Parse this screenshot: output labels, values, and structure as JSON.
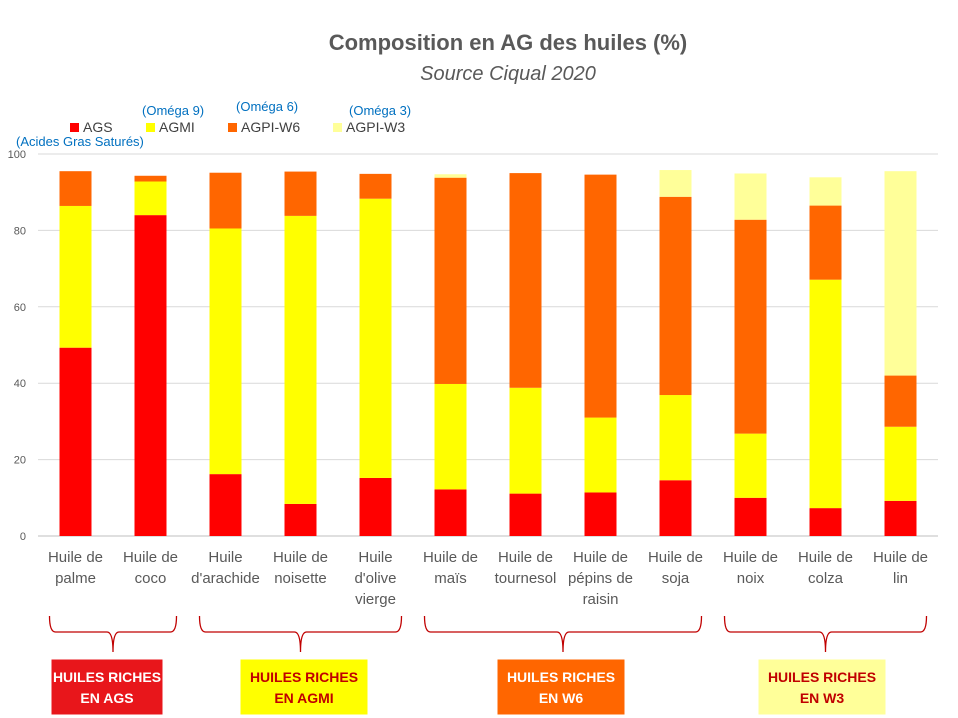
{
  "chart_data": {
    "type": "bar",
    "stacked": true,
    "title": "Composition en AG des huiles (%)",
    "subtitle": "Source Ciqual 2020",
    "ylim": [
      0,
      100
    ],
    "yticks": [
      0,
      20,
      40,
      60,
      80,
      100
    ],
    "grid": true,
    "legend_position": "top-left",
    "categories": [
      [
        "Huile de",
        "palme"
      ],
      [
        "Huile de",
        "coco"
      ],
      [
        "Huile",
        "d'arachide"
      ],
      [
        "Huile de",
        "noisette"
      ],
      [
        "Huile",
        "d'olive",
        "vierge"
      ],
      [
        "Huile de",
        "maïs"
      ],
      [
        "Huile de",
        "tournesol"
      ],
      [
        "Huile de",
        "pépins de",
        "raisin"
      ],
      [
        "Huile de",
        "soja"
      ],
      [
        "Huile de",
        "noix"
      ],
      [
        "Huile de",
        "colza"
      ],
      [
        "Huile de",
        "lin"
      ]
    ],
    "series": [
      {
        "name": "AGS",
        "note": "(Acides Gras Saturés)",
        "color": "#ff0000",
        "values": [
          49.3,
          84,
          16.2,
          8.4,
          15.2,
          12.2,
          11.1,
          11.4,
          14.6,
          10,
          7.3,
          9.2
        ]
      },
      {
        "name": "AGMI",
        "note": "(Oméga 9)",
        "color": "#ffff00",
        "values": [
          37.1,
          8.8,
          64.3,
          75.4,
          73.1,
          27.6,
          27.7,
          19.6,
          22.3,
          16.8,
          59.8,
          19.4
        ]
      },
      {
        "name": "AGPI-W6",
        "note": "(Oméga 6)",
        "color": "#ff6600",
        "values": [
          9.1,
          1.5,
          14.6,
          11.6,
          6.5,
          54,
          56.2,
          63.6,
          51.9,
          56,
          19.4,
          13.4
        ]
      },
      {
        "name": "AGPI-W3",
        "note": "(Oméga 3)",
        "color": "#ffff99",
        "values": [
          0,
          0,
          0,
          0,
          0,
          0.9,
          0,
          0,
          7,
          12.1,
          7.4,
          53.5
        ]
      }
    ],
    "groups": [
      {
        "label": [
          "HUILES RICHES",
          "EN AGS"
        ],
        "start": 0,
        "end": 1,
        "bg": "#e8161b",
        "fg": "#ffffff",
        "border": "#e8161b"
      },
      {
        "label": [
          "HUILES RICHES",
          "EN AGMI"
        ],
        "start": 2,
        "end": 4,
        "bg": "#ffff00",
        "fg": "#c00000",
        "border": "#ffff00"
      },
      {
        "label": [
          "HUILES RICHES",
          "EN W6"
        ],
        "start": 5,
        "end": 8,
        "bg": "#ff6600",
        "fg": "#ffffff",
        "border": "#ff6600"
      },
      {
        "label": [
          "HUILES RICHES",
          "EN W3"
        ],
        "start": 9,
        "end": 11,
        "bg": "#ffff99",
        "fg": "#c00000",
        "border": "#ffff99"
      }
    ],
    "brace_color": "#c00000"
  }
}
